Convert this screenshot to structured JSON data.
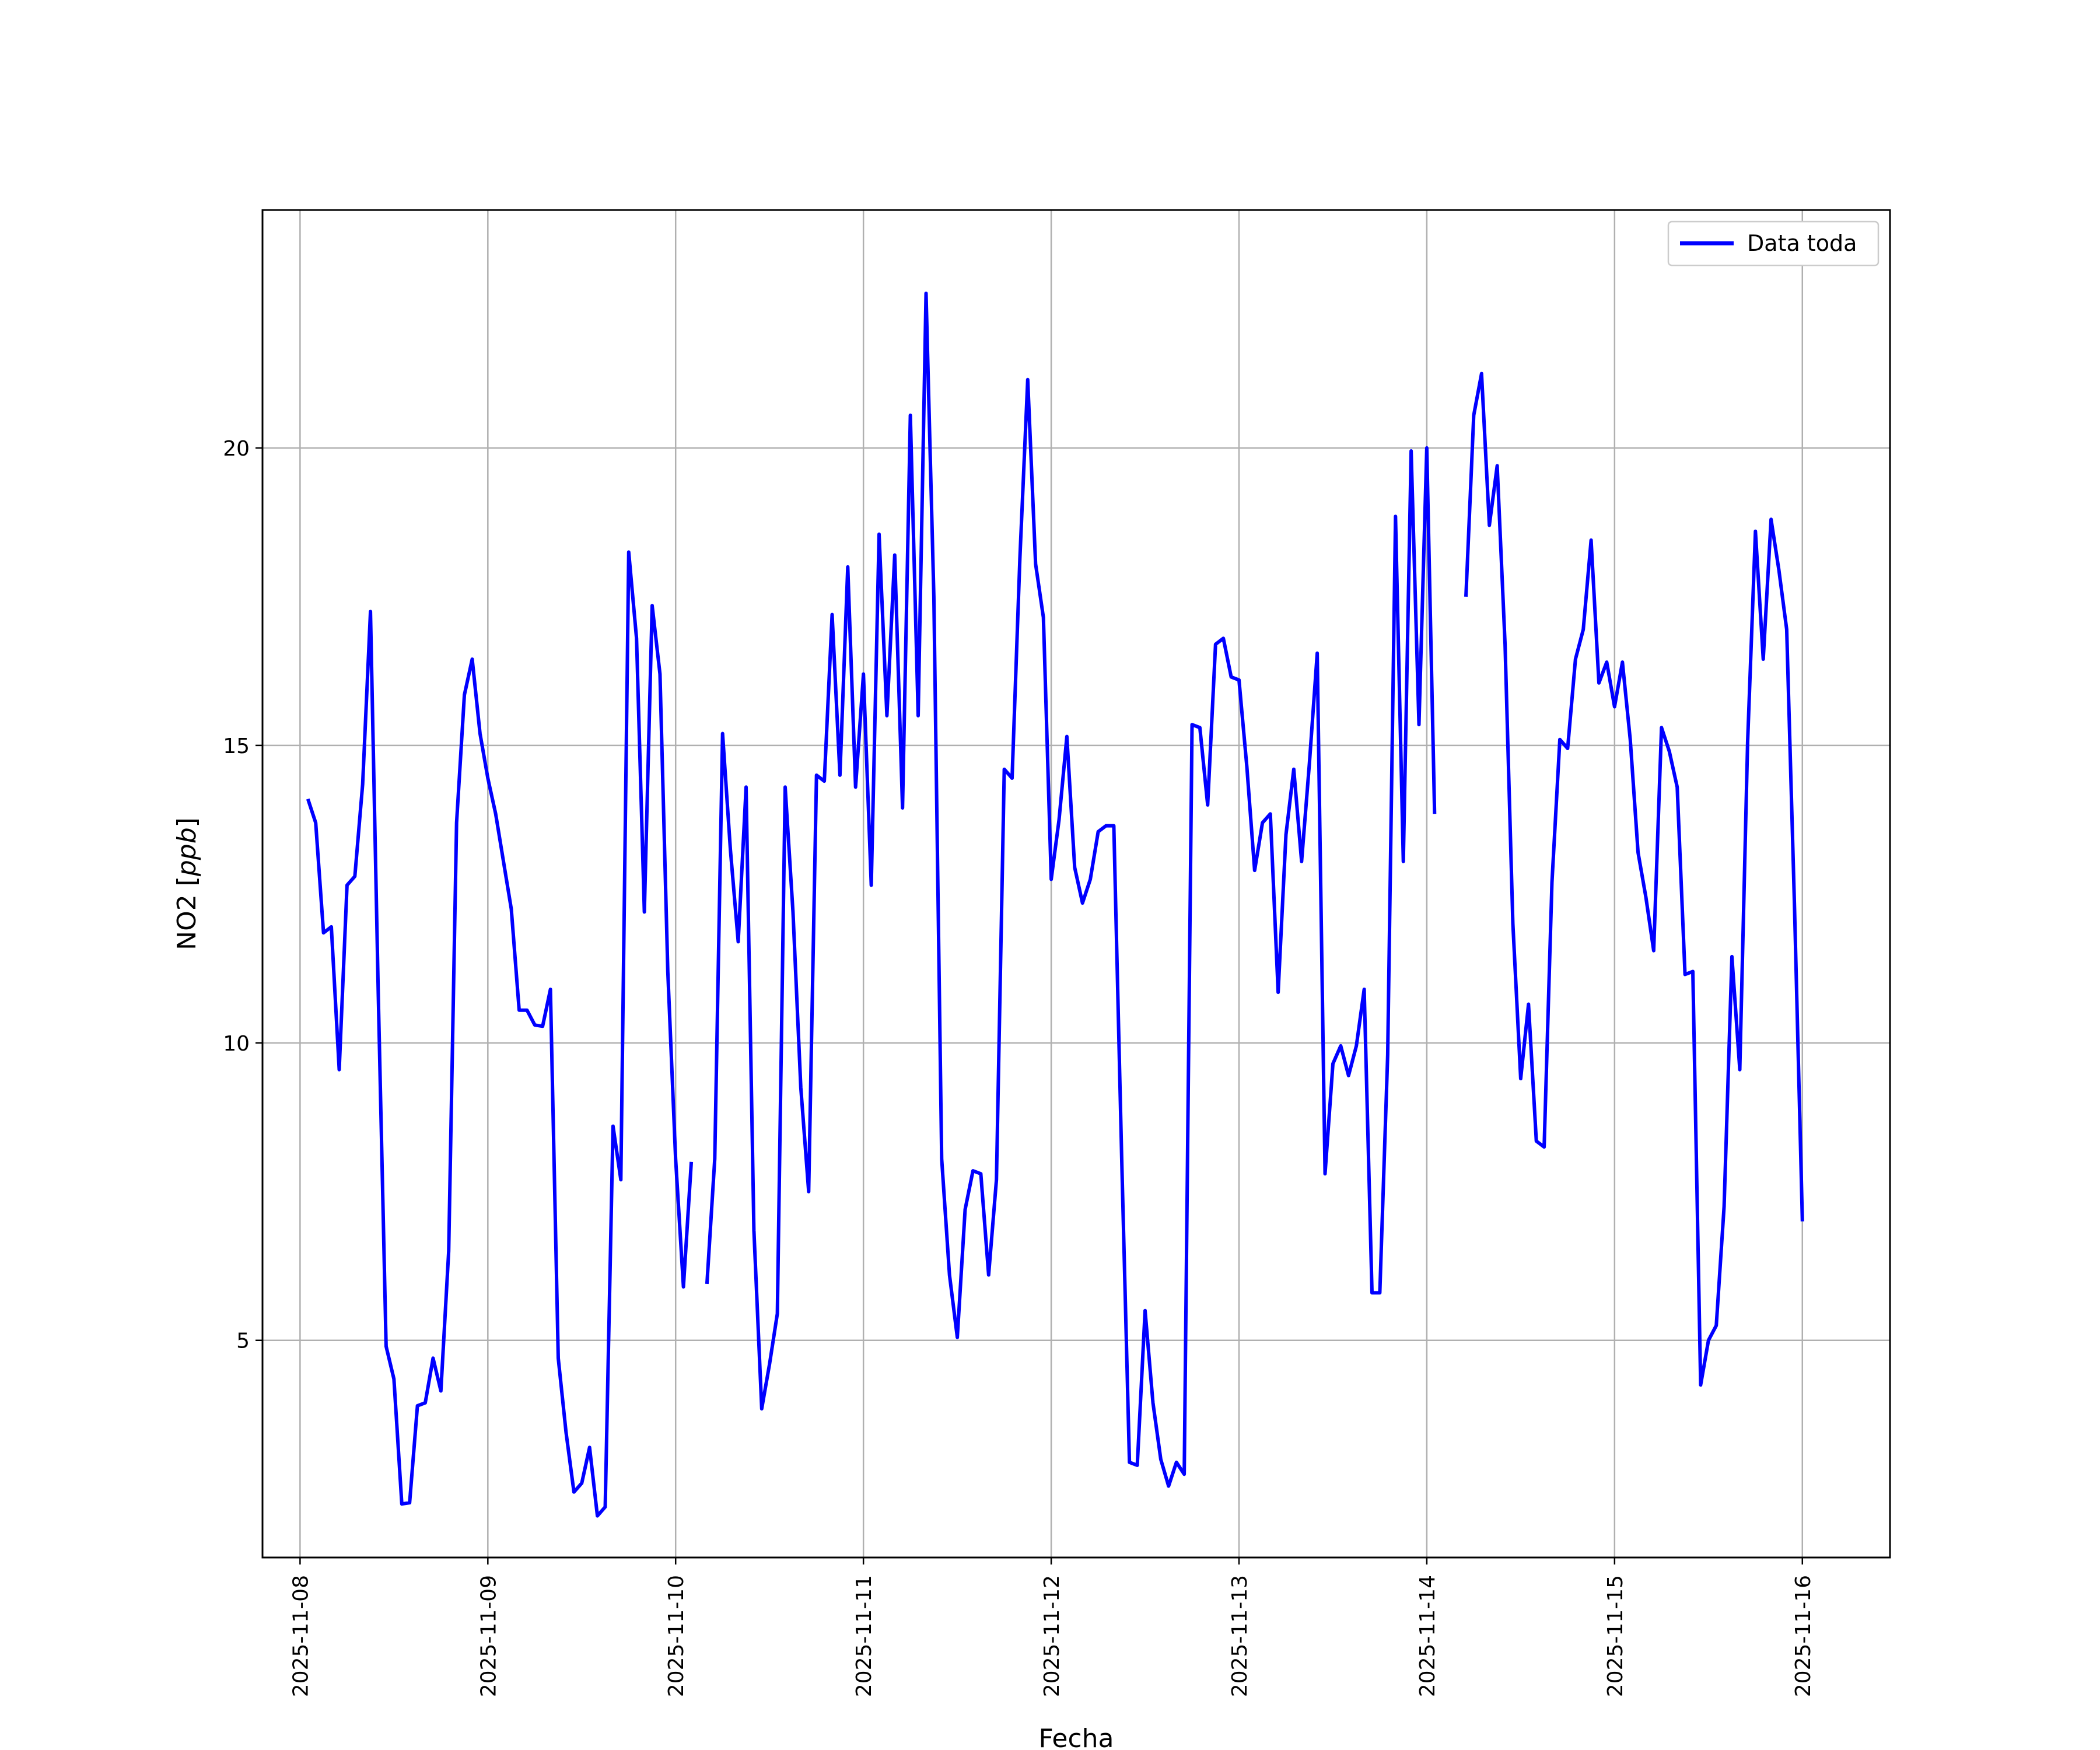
{
  "chart_data": {
    "type": "line",
    "title": "",
    "xlabel": "Fecha",
    "ylabel": "NO2 [ppb]",
    "ylabel_plain": "NO2 [",
    "ylabel_italic": "ppb",
    "ylabel_close": "]",
    "xlim": [
      "2025-11-07T19:12",
      "2025-11-16T11:12"
    ],
    "ylim": [
      1.35,
      24.0
    ],
    "grid": true,
    "legend": "top-right",
    "x_ticks": [
      "2025-11-08",
      "2025-11-09",
      "2025-11-10",
      "2025-11-11",
      "2025-11-12",
      "2025-11-13",
      "2025-11-14",
      "2025-11-15",
      "2025-11-16"
    ],
    "y_ticks": [
      5,
      10,
      15,
      20
    ],
    "series": [
      {
        "name": "Data toda",
        "color": "#0000ff",
        "segments": [
          {
            "start": "2025-11-08T01:00",
            "step_hours": 1,
            "values": [
              14.1,
              13.7,
              11.85,
              11.95,
              9.55,
              12.65,
              12.8,
              14.35,
              17.25,
              10.8,
              4.9,
              4.35,
              2.25,
              2.27,
              3.9,
              3.95,
              4.7,
              4.15,
              6.5,
              13.7,
              15.85,
              16.45,
              15.2,
              14.45,
              13.85,
              13.05,
              12.25,
              10.55,
              10.55,
              10.3,
              10.28,
              10.9,
              4.7,
              3.45,
              2.45,
              2.6,
              3.2,
              2.05,
              2.2,
              8.6,
              7.7,
              18.25,
              16.8,
              12.2,
              17.35,
              16.2,
              11.2,
              8.05,
              5.9,
              8.0
            ]
          },
          {
            "start": "2025-11-10T04:00",
            "step_hours": 1,
            "values": [
              5.95,
              8.05,
              15.2,
              13.25,
              11.7,
              14.3,
              6.85,
              3.85,
              4.6,
              5.45,
              14.3,
              12.2,
              9.25,
              7.5,
              14.5,
              14.4,
              17.2,
              14.5,
              18.0,
              14.3,
              16.2,
              12.65,
              18.55,
              15.5,
              18.2,
              13.95,
              20.55,
              15.5,
              22.6,
              17.5,
              8.05,
              6.1,
              5.05,
              7.2,
              7.85,
              7.8,
              6.1,
              7.7,
              14.6,
              14.45,
              18.15,
              21.15,
              18.05,
              17.15,
              12.75,
              13.75,
              15.15,
              12.95,
              12.35,
              12.75,
              13.55,
              13.65,
              13.65,
              8.1,
              2.95,
              2.9,
              5.5,
              3.95,
              3.0,
              2.55,
              2.95,
              2.75,
              15.35,
              15.3,
              14.0,
              16.7,
              16.8,
              16.15,
              16.1,
              14.65,
              12.9,
              13.7,
              13.85,
              10.85,
              13.5,
              14.6,
              13.05,
              14.7,
              16.55,
              7.8,
              9.65,
              9.95,
              9.45,
              9.95,
              10.9,
              5.8,
              5.8,
              9.8,
              18.85,
              13.05,
              19.95,
              15.35,
              20.0,
              13.85
            ]
          },
          {
            "start": "2025-11-14T05:00",
            "step_hours": 1,
            "values": [
              17.5,
              20.55,
              21.25,
              18.7,
              19.7,
              16.7,
              12.0,
              9.4,
              10.65,
              8.35,
              8.25,
              12.7,
              15.1,
              14.95,
              16.45,
              16.95,
              18.45,
              16.05,
              16.4,
              15.65,
              16.4,
              15.1,
              13.2,
              12.45,
              11.55,
              15.3,
              14.9,
              14.3,
              11.15,
              11.2,
              4.25,
              5.0,
              5.25,
              7.25,
              11.45,
              9.55,
              15.05,
              18.6,
              16.45,
              18.8,
              17.95,
              16.95,
              12.25,
              7.0
            ]
          }
        ]
      }
    ]
  }
}
